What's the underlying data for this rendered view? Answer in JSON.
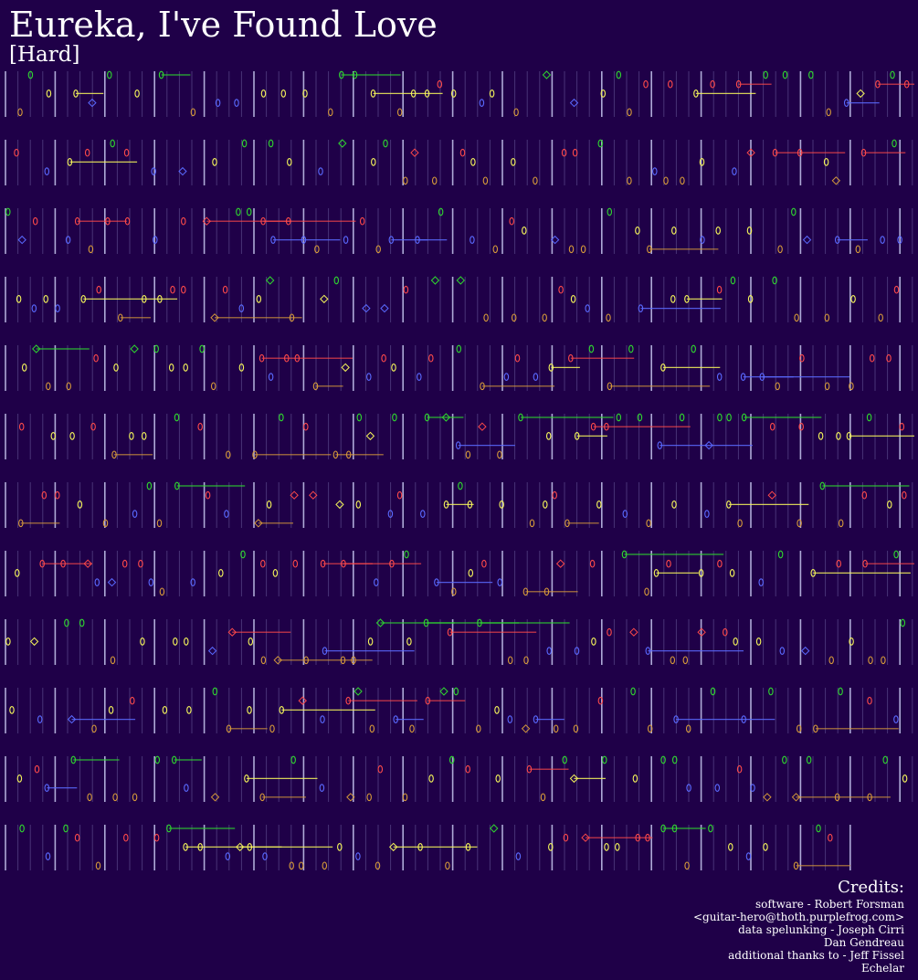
{
  "song": {
    "title": "Eureka, I've Found Love",
    "difficulty": "[Hard]"
  },
  "colors": {
    "background": "#1f0048",
    "bar_line": "#c8c8f0",
    "beat_line": "#5a4a8c",
    "green": "#2fd62f",
    "red": "#ff4a4a",
    "yellow": "#f4f45a",
    "blue": "#5a6aff",
    "orange": "#d69a3a",
    "text": "#ffffff"
  },
  "lanes": [
    "green",
    "red",
    "yellow",
    "blue",
    "orange"
  ],
  "credits": {
    "heading": "Credits:",
    "lines": [
      "software - Robert Forsman",
      "<guitar-hero@thoth.purplefrog.com>",
      "data spelunking - Joseph Cirri",
      "Dan Gendreau",
      "additional thanks to - Jeff Fissel",
      "Echelar"
    ]
  }
}
